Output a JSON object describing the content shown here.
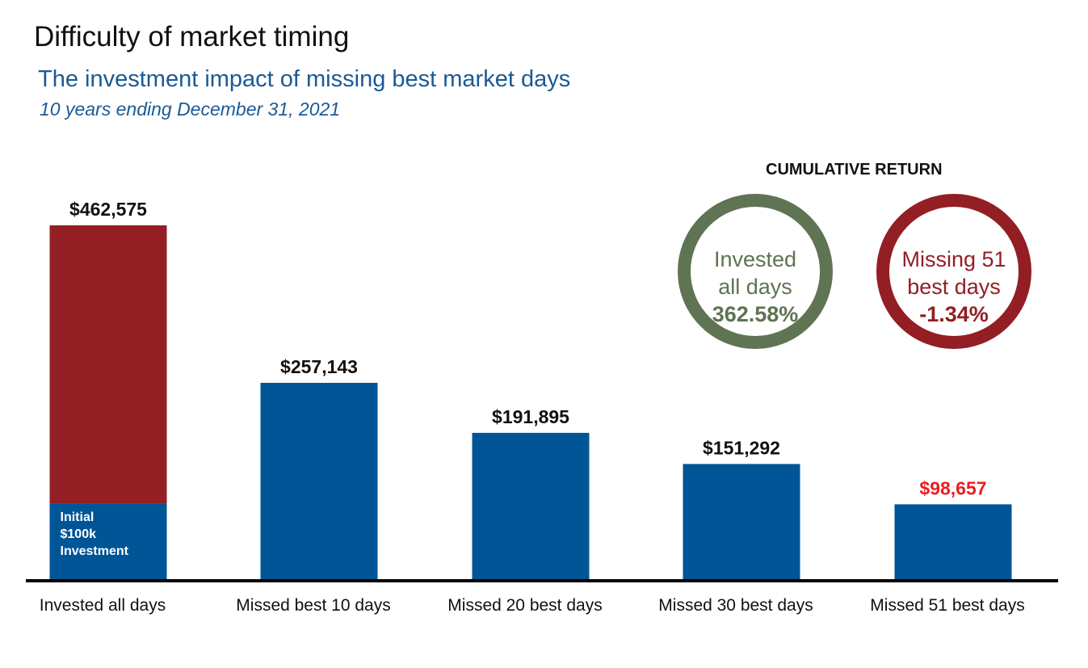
{
  "header": {
    "title": "Difficulty of market timing",
    "subtitle": "The investment impact of missing best market days",
    "period": "10 years ending December 31, 2021"
  },
  "cumulative": {
    "title": "CUMULATIVE RETURN",
    "invested": {
      "line1": "Invested",
      "line2": "all days",
      "value": "362.58%",
      "color": "#5e7452"
    },
    "missing": {
      "line1": "Missing 51",
      "line2": "best days",
      "value": "-1.34%",
      "color": "#931e24"
    }
  },
  "chart_data": {
    "type": "bar",
    "categories": [
      "Invested all days",
      "Missed best 10 days",
      "Missed 20 best days",
      "Missed 30 best days",
      "Missed 51 best days"
    ],
    "values": [
      462575,
      257143,
      191895,
      151292,
      98657
    ],
    "value_labels": [
      "$462,575",
      "$257,143",
      "$191,895",
      "$151,292",
      "$98,657"
    ],
    "initial_investment": 100000,
    "initial_label": [
      "Initial",
      "$100k",
      "Investment"
    ],
    "ylim": [
      0,
      462575
    ],
    "grid": false,
    "colors": {
      "bar": "#005596",
      "gain": "#931e24",
      "alert_label": "#ee1c1c",
      "axis": "#000000"
    },
    "alert_index": 4
  }
}
